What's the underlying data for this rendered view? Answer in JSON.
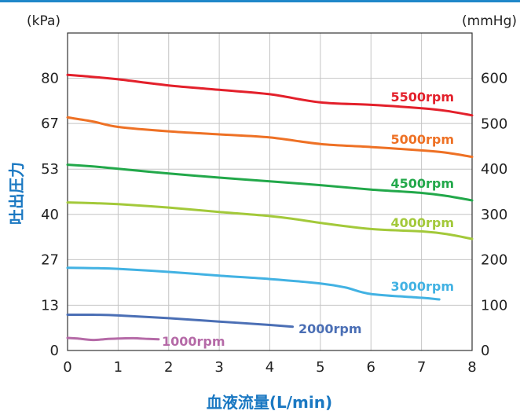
{
  "chart_data": {
    "type": "line",
    "xlabel": "血液流量(L/min)",
    "ylabel": "吐出圧力",
    "left_unit": "(kPa)",
    "right_unit": "(mmHg)",
    "xlim": [
      0,
      8
    ],
    "ylim_kpa": [
      0,
      93.3
    ],
    "ylim_mmhg": [
      0,
      700
    ],
    "x_ticks": [
      "0",
      "1",
      "2",
      "3",
      "4",
      "5",
      "6",
      "7",
      "8"
    ],
    "y_ticks_left": [
      {
        "value": 0,
        "label": "0"
      },
      {
        "value": 13.3,
        "label": "13"
      },
      {
        "value": 26.7,
        "label": "27"
      },
      {
        "value": 40,
        "label": "40"
      },
      {
        "value": 53.3,
        "label": "53"
      },
      {
        "value": 66.7,
        "label": "67"
      },
      {
        "value": 80,
        "label": "80"
      }
    ],
    "y_ticks_right": [
      {
        "value": 0,
        "label": "0"
      },
      {
        "value": 100,
        "label": "100"
      },
      {
        "value": 200,
        "label": "200"
      },
      {
        "value": 300,
        "label": "300"
      },
      {
        "value": 400,
        "label": "400"
      },
      {
        "value": 500,
        "label": "500"
      },
      {
        "value": 600,
        "label": "600"
      }
    ],
    "grid": true,
    "series": [
      {
        "name": "5500rpm",
        "color": "#e3202b",
        "x": [
          0,
          0.5,
          1,
          2,
          3,
          4,
          5,
          6,
          7,
          7.5,
          8
        ],
        "y": [
          81,
          80.4,
          79.7,
          77.9,
          76.6,
          75.3,
          72.9,
          72.2,
          71.2,
          70.4,
          69.1
        ]
      },
      {
        "name": "5000rpm",
        "color": "#ee7125",
        "x": [
          0,
          0.5,
          1,
          2,
          3,
          4,
          5,
          6,
          7,
          7.5,
          8
        ],
        "y": [
          68.5,
          67.3,
          65.7,
          64.4,
          63.5,
          62.6,
          60.7,
          59.8,
          58.8,
          58.1,
          56.9
        ]
      },
      {
        "name": "4500rpm",
        "color": "#22a84a",
        "x": [
          0,
          0.5,
          1,
          2,
          3,
          4,
          5,
          6,
          7,
          7.5,
          8
        ],
        "y": [
          54.6,
          54.1,
          53.4,
          52.0,
          50.8,
          49.7,
          48.6,
          47.3,
          46.3,
          45.4,
          44.1
        ]
      },
      {
        "name": "4000rpm",
        "color": "#a3c93a",
        "x": [
          0,
          0.5,
          1,
          2,
          3,
          4,
          4.5,
          5,
          6,
          7,
          7.5,
          8
        ],
        "y": [
          43.5,
          43.3,
          43.0,
          42.0,
          40.7,
          39.5,
          38.6,
          37.5,
          35.7,
          35.0,
          34.2,
          32.8
        ]
      },
      {
        "name": "3000rpm",
        "color": "#42b2e3",
        "x": [
          0,
          0.5,
          1,
          2,
          3,
          4,
          5,
          5.5,
          6,
          7,
          7.35
        ],
        "y": [
          24.3,
          24.2,
          24.0,
          23.1,
          22.0,
          21.0,
          19.7,
          18.5,
          16.6,
          15.5,
          15.0
        ]
      },
      {
        "name": "2000rpm",
        "color": "#4b6fb5",
        "x": [
          0,
          0.5,
          1,
          2,
          3,
          4,
          4.45
        ],
        "y": [
          10.5,
          10.5,
          10.3,
          9.5,
          8.5,
          7.5,
          7.0
        ]
      },
      {
        "name": "1000rpm",
        "color": "#b56aa7",
        "x": [
          0,
          0.2,
          0.5,
          0.8,
          1.0,
          1.3,
          1.6,
          1.8
        ],
        "y": [
          3.7,
          3.5,
          3.1,
          3.4,
          3.5,
          3.6,
          3.4,
          3.3
        ]
      }
    ]
  }
}
